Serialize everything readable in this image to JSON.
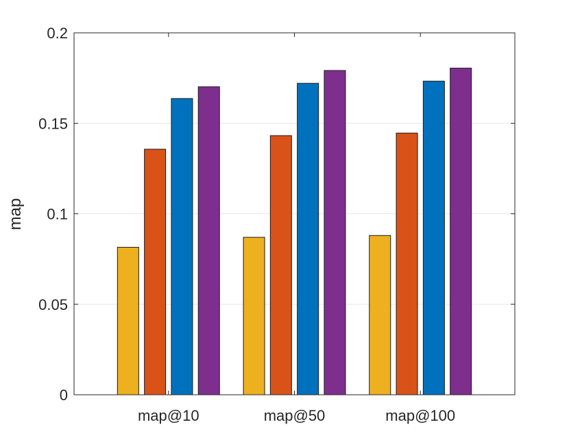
{
  "chart_data": {
    "type": "bar",
    "title": "",
    "xlabel": "",
    "ylabel": "map",
    "categories": [
      "map@10",
      "map@50",
      "map@100"
    ],
    "ylim": [
      0,
      0.2
    ],
    "yticks": [
      0,
      0.05,
      0.1,
      0.15,
      0.2
    ],
    "ytick_labels": [
      "0",
      "0.05",
      "0.1",
      "0.15",
      "0.2"
    ],
    "grid": "horizontal",
    "legend": "none",
    "series": [
      {
        "color": "#EDB120",
        "values": [
          0.0815,
          0.087,
          0.088
        ]
      },
      {
        "color": "#D95319",
        "values": [
          0.1357,
          0.1432,
          0.1446
        ]
      },
      {
        "color": "#0072BD",
        "values": [
          0.1637,
          0.1721,
          0.1733
        ]
      },
      {
        "color": "#7E2F8E",
        "values": [
          0.1702,
          0.1792,
          0.1805
        ]
      }
    ]
  }
}
